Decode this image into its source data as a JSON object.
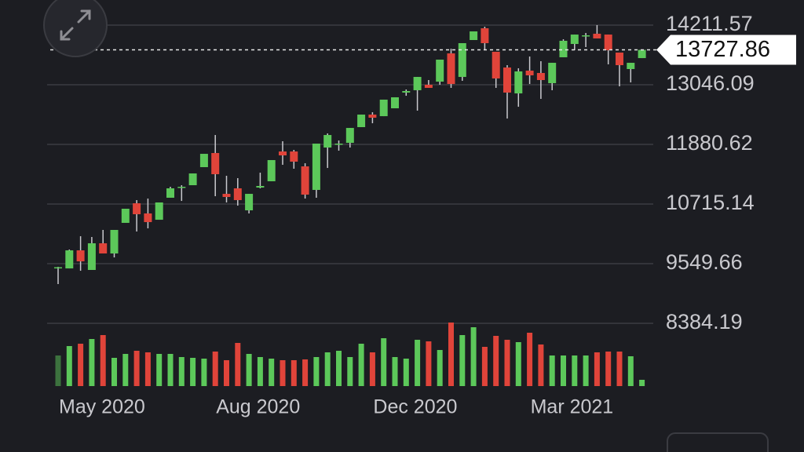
{
  "chart_data": {
    "type": "candlestick",
    "categories": [
      "May 2020",
      null,
      null,
      null,
      null,
      null,
      null,
      null,
      null,
      null,
      null,
      null,
      null,
      null,
      "Aug 2020",
      null,
      null,
      null,
      null,
      null,
      null,
      null,
      null,
      null,
      null,
      null,
      null,
      null,
      "Dec 2020",
      null,
      null,
      null,
      null,
      null,
      null,
      null,
      null,
      null,
      null,
      null,
      null,
      null,
      "Mar 2021",
      null,
      null,
      null,
      null,
      null,
      null,
      null,
      null,
      null,
      null
    ],
    "open": [
      9473,
      9457,
      9810,
      9427,
      9948,
      9749,
      10347,
      10730,
      10531,
      10408,
      10838,
      11037,
      11083,
      11436,
      11712,
      10914,
      11022,
      10592,
      11037,
      11160,
      11742,
      11742,
      11451,
      10991,
      11819,
      11880,
      11911,
      12218,
      12463,
      12432,
      12586,
      12893,
      12939,
      13046,
      13107,
      13659,
      13199,
      13920,
      14150,
      13690,
      13383,
      12877,
      13322,
      13276,
      13077,
      13583,
      13843,
      13997,
      14043,
      14027,
      13675,
      13353,
      13567
    ],
    "high": [
      9488,
      9826,
      10086,
      10071,
      10209,
      10209,
      10623,
      10792,
      10822,
      10746,
      11052,
      11083,
      11313,
      11696,
      12064,
      11267,
      11221,
      10914,
      11328,
      11574,
      11942,
      11773,
      11512,
      11896,
      12095,
      11957,
      12202,
      12463,
      12509,
      12755,
      12801,
      12954,
      13199,
      13138,
      13537,
      13751,
      13859,
      14089,
      14181,
      13690,
      13429,
      13368,
      13598,
      13506,
      13475,
      13935,
      14027,
      14058,
      14212,
      14027,
      13675,
      13475,
      13727.86
    ],
    "low": [
      9151,
      9457,
      9411,
      9427,
      9749,
      9672,
      10347,
      10178,
      10240,
      10408,
      10838,
      10776,
      11083,
      11436,
      10868,
      10746,
      10684,
      10531,
      11022,
      11160,
      11482,
      11405,
      10822,
      10838,
      11420,
      11758,
      11819,
      12218,
      12294,
      12432,
      12586,
      12831,
      12540,
      12985,
      13046,
      12985,
      13123,
      13920,
      13736,
      12985,
      12386,
      12616,
      13061,
      12770,
      12939,
      13583,
      13721,
      13782,
      13951,
      13445,
      13015,
      13092,
      13567
    ],
    "close": [
      9480,
      9810,
      9595,
      9948,
      9749,
      10209,
      10623,
      10516,
      10362,
      10746,
      11022,
      11052,
      11313,
      11696,
      11298,
      10853,
      10792,
      10914,
      11068,
      11574,
      11666,
      11543,
      10899,
      11896,
      12064,
      11896,
      12202,
      12463,
      12402,
      12755,
      12801,
      12923,
      13199,
      12985,
      13537,
      13061,
      13859,
      14089,
      13859,
      13169,
      12893,
      13307,
      13230,
      13138,
      13475,
      13905,
      14027,
      14012,
      13951,
      13721,
      13429,
      13475,
      13727.86
    ],
    "volume": [
      39,
      51,
      54,
      60,
      65,
      36,
      41,
      45,
      43,
      41,
      41,
      37,
      36,
      35,
      44,
      33,
      55,
      41,
      37,
      35,
      33,
      33,
      34,
      37,
      43,
      45,
      37,
      54,
      43,
      61,
      37,
      35,
      59,
      57,
      46,
      81,
      65,
      75,
      50,
      64,
      59,
      56,
      68,
      53,
      39,
      39,
      39,
      39,
      43,
      44,
      44,
      38,
      8
    ],
    "up_color": "#5cc85a",
    "down_color": "#e0443a",
    "ylim": [
      8384.19,
      14702.3
    ],
    "yticks": [
      14211.57,
      13046.09,
      11880.62,
      10715.14,
      9549.66,
      8384.19
    ],
    "grid": true
  }
}
